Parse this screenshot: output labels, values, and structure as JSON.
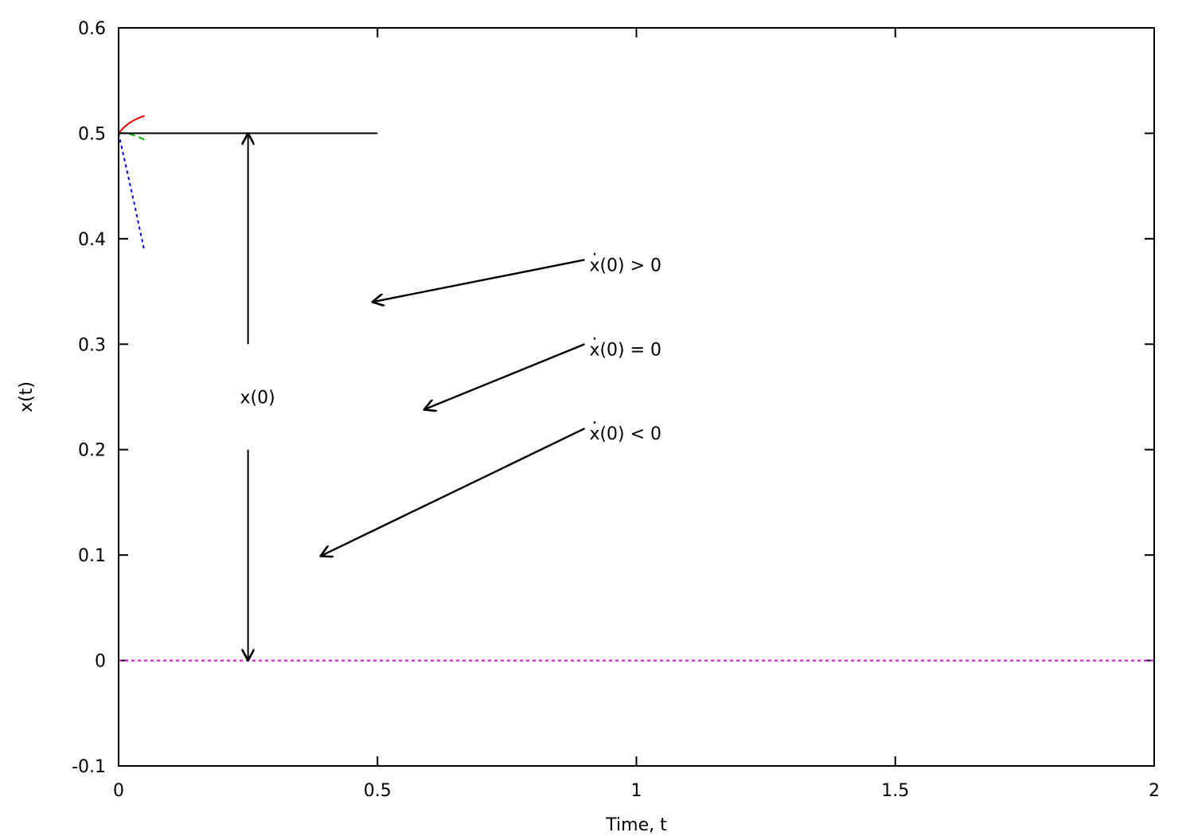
{
  "chart_data": {
    "type": "line",
    "title": "",
    "xlabel": "Time, t",
    "ylabel": "x(t)",
    "xlim": [
      0,
      2
    ],
    "ylim": [
      -0.1,
      0.6
    ],
    "grid": false,
    "xticks": [
      0,
      0.5,
      1,
      1.5,
      2
    ],
    "xtick_labels": [
      "0",
      "0.5",
      "1",
      "1.5",
      "2"
    ],
    "yticks": [
      -0.1,
      0,
      0.1,
      0.2,
      0.3,
      0.4,
      0.5,
      0.6
    ],
    "ytick_labels": [
      "-0.1",
      "0",
      "0.1",
      "0.2",
      "0.3",
      "0.4",
      "0.5",
      "0.6"
    ],
    "series": [
      {
        "color": "#e00000",
        "dash": "solid",
        "x": [
          0,
          0.01,
          0.02,
          0.03,
          0.04,
          0.05
        ],
        "y": [
          0.5,
          0.5055,
          0.5095,
          0.5125,
          0.5148,
          0.5165
        ]
      },
      {
        "color": "#00b000",
        "dash": "dash",
        "x": [
          0,
          0.01,
          0.02,
          0.03,
          0.04,
          0.05
        ],
        "y": [
          0.5,
          0.5002,
          0.4995,
          0.498,
          0.4962,
          0.494
        ]
      },
      {
        "color": "#0000e0",
        "dash": "dot",
        "x": [
          0,
          0.01,
          0.02,
          0.03,
          0.04,
          0.05
        ],
        "y": [
          0.5,
          0.478,
          0.456,
          0.434,
          0.411,
          0.388
        ]
      },
      {
        "color": "#e000e0",
        "dash": "dot",
        "x": [
          0,
          2
        ],
        "y": [
          0,
          0
        ]
      }
    ],
    "reference_line": {
      "x": [
        0,
        0.5
      ],
      "y": [
        0.5,
        0.5
      ]
    },
    "dimension_arrow": {
      "x": 0.25,
      "y_from": 0.3,
      "y_to": 0.5,
      "y2_from": 0.2,
      "y2_to": 0.0,
      "label": "x(0)",
      "label_pos": [
        0.25,
        0.25
      ]
    },
    "annotations": [
      {
        "text": "x(0) > 0",
        "dot": ".",
        "anchor": [
          0.9,
          0.38
        ],
        "tip": [
          0.49,
          0.34
        ]
      },
      {
        "text": "x(0) = 0",
        "dot": ".",
        "anchor": [
          0.9,
          0.3
        ],
        "tip": [
          0.59,
          0.238
        ]
      },
      {
        "text": "x(0) < 0",
        "dot": ".",
        "anchor": [
          0.9,
          0.22
        ],
        "tip": [
          0.39,
          0.099
        ]
      }
    ]
  }
}
